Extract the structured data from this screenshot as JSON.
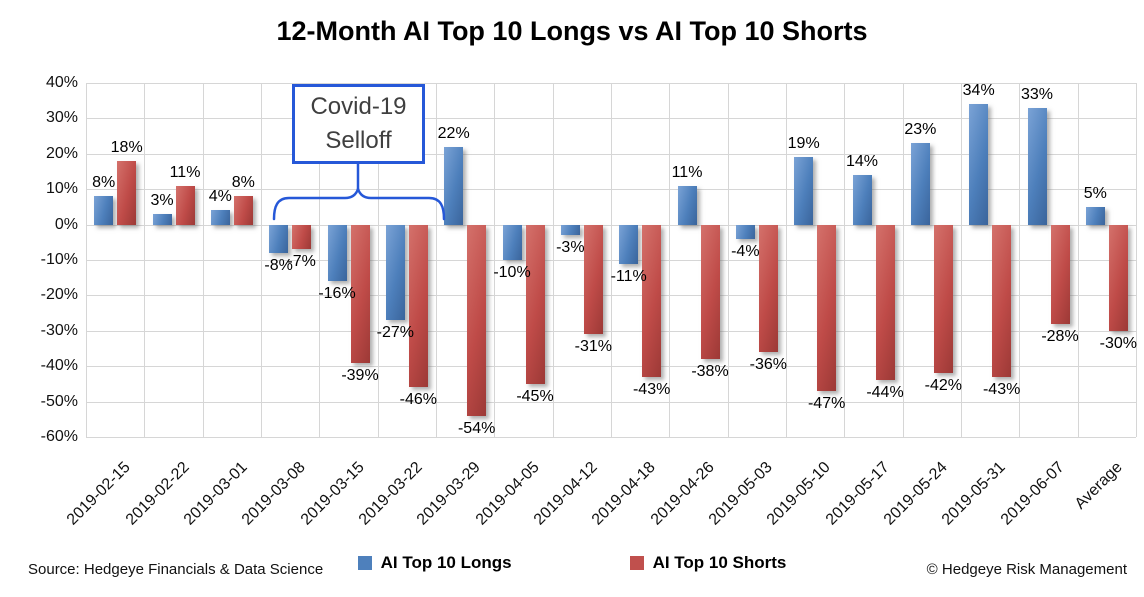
{
  "chart_data": {
    "type": "bar",
    "title": "12-Month AI Top 10 Longs vs AI Top 10 Shorts",
    "xlabel": "",
    "ylabel": "",
    "categories": [
      "2019-02-15",
      "2019-02-22",
      "2019-03-01",
      "2019-03-08",
      "2019-03-15",
      "2019-03-22",
      "2019-03-29",
      "2019-04-05",
      "2019-04-12",
      "2019-04-18",
      "2019-04-26",
      "2019-05-03",
      "2019-05-10",
      "2019-05-17",
      "2019-05-24",
      "2019-05-31",
      "2019-06-07",
      "Average"
    ],
    "series": [
      {
        "name": "AI Top 10 Longs",
        "color": "#4e80bc",
        "values": [
          8,
          3,
          4,
          -8,
          -16,
          -27,
          22,
          -10,
          -3,
          -11,
          11,
          -4,
          19,
          14,
          23,
          34,
          33,
          5
        ]
      },
      {
        "name": "AI Top 10 Shorts",
        "color": "#c0504d",
        "values": [
          18,
          11,
          8,
          -7,
          -39,
          -46,
          -54,
          -45,
          -31,
          -43,
          -38,
          -36,
          -47,
          -44,
          -42,
          -43,
          -28,
          -30
        ]
      }
    ],
    "value_label_format": "percent",
    "yticks": [
      "40%",
      "30%",
      "20%",
      "10%",
      "0%",
      "-10%",
      "-20%",
      "-30%",
      "-40%",
      "-50%",
      "-60%"
    ],
    "ylim": [
      -60,
      40
    ],
    "ytick_step": 10,
    "grid": true,
    "legend_position": "bottom"
  },
  "annotation": {
    "line1": "Covid-19",
    "line2": "Selloff",
    "color": "#2658d8",
    "span_categories": [
      "2019-03-08",
      "2019-03-15",
      "2019-03-22"
    ]
  },
  "legend": [
    {
      "label": "AI Top 10 Longs",
      "color": "#4e80bc"
    },
    {
      "label": "AI Top 10 Shorts",
      "color": "#c0504d"
    }
  ],
  "footer": {
    "source": "Source: Hedgeye Financials & Data Science",
    "copyright": "© Hedgeye Risk Management"
  }
}
